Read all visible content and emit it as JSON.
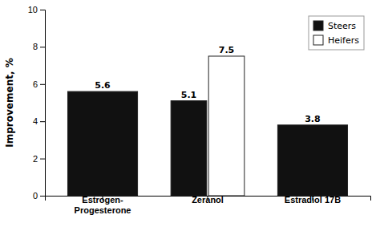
{
  "chart_data": {
    "type": "bar",
    "categories": [
      "Estrogen-\nProgesterone",
      "Zeranol",
      "Estradiol 17B"
    ],
    "series": [
      {
        "name": "Steers",
        "color": "#111111",
        "values": [
          5.6,
          5.1,
          3.8
        ]
      },
      {
        "name": "Heifers",
        "color": "#ffffff",
        "values": [
          null,
          7.5,
          null
        ]
      }
    ],
    "ylabel": "Improvement, %",
    "ylim": [
      0,
      10
    ],
    "yticks": [
      0,
      2,
      4,
      6,
      8,
      10
    ],
    "data_labels": true,
    "legend": "upper right",
    "grid": false
  }
}
